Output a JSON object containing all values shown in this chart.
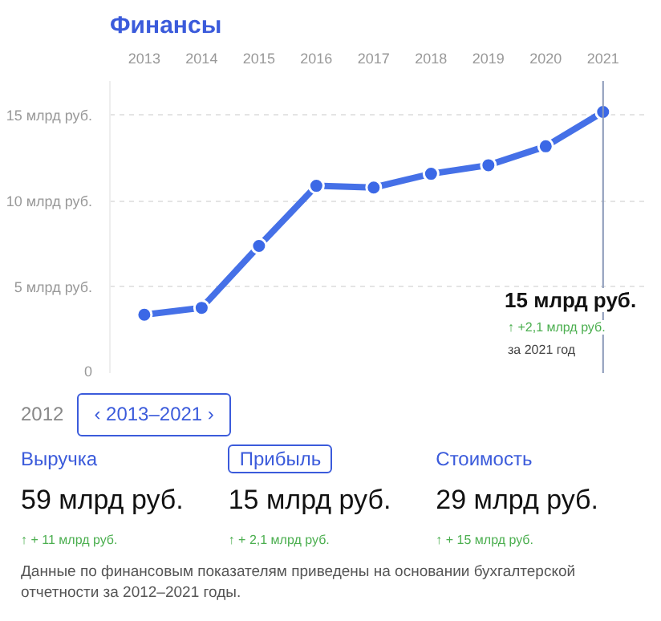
{
  "chart_data": {
    "type": "line",
    "title": "Финансы",
    "x": [
      2013,
      2014,
      2015,
      2016,
      2017,
      2018,
      2019,
      2020,
      2021
    ],
    "series": [
      {
        "color": "#3b68e6",
        "values": [
          3.4,
          3.8,
          7.4,
          10.9,
          10.8,
          11.6,
          12.1,
          13.2,
          15.2
        ]
      }
    ],
    "xlim": [
      2012.4,
      2021.8
    ],
    "ylim": [
      0,
      17
    ],
    "xticks": [
      2013,
      2014,
      2015,
      2016,
      2017,
      2018,
      2019,
      2020,
      2021
    ],
    "yticks": [
      0,
      {
        "value": 5,
        "label": "5 млрд руб."
      },
      {
        "value": 10,
        "label": "10 млрд руб."
      },
      {
        "value": 15,
        "label": "15 млрд руб."
      }
    ],
    "grid": "y",
    "marker": "circle",
    "line_style": "solid",
    "ref_lines": [
      {
        "axis": "x",
        "value": 2021,
        "color": "#8a99b8"
      }
    ],
    "annotations": [
      "15 млрд руб.",
      "↑ +2,1 млрд руб.",
      "за 2021 год",
      "2012",
      "‹ 2013–2021 ›",
      "Выручка",
      "Прибыль",
      "Стоимость",
      "59 млрд руб.",
      "15 млрд руб.",
      "29 млрд руб.",
      "↑ + 11 млрд руб.",
      "↑ + 2,1 млрд руб.",
      "↑ + 15 млрд руб.",
      "Данные по финансовым показателям приведены на основании бухгалтерской отчетности за 2012–2021 годы."
    ]
  }
}
